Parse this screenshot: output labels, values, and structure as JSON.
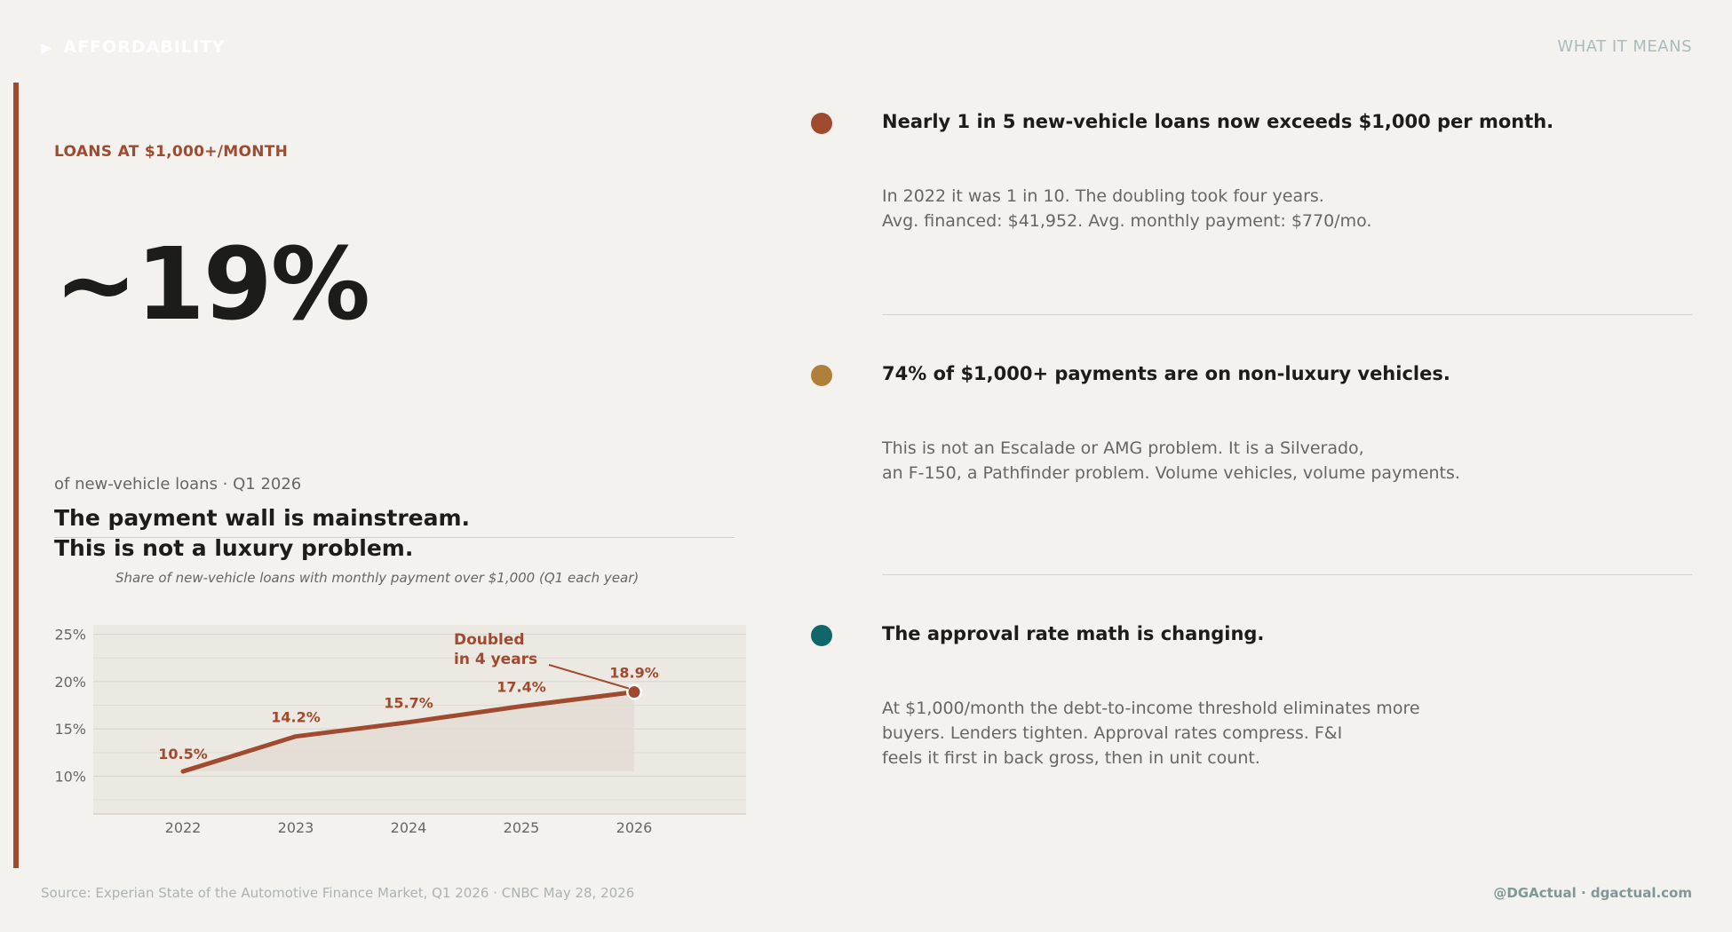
{
  "header": {
    "brand": "AFFORDABILITY",
    "section": "WHAT IT MEANS"
  },
  "left": {
    "kicker": "LOANS AT $1,000+/MONTH",
    "stat": "~19%",
    "stat_sub": "of new-vehicle loans  ·  Q1 2026",
    "headline_line1": "The payment wall is mainstream.",
    "headline_line2": "This is not a luxury problem.",
    "chart_caption": "Share of new-vehicle loans with monthly payment over $1,000 (Q1 each year)"
  },
  "chart_data": {
    "type": "line",
    "title": "Share of new-vehicle loans with monthly payment over $1,000 (Q1 each year)",
    "x": [
      "2022",
      "2023",
      "2024",
      "2025",
      "2026"
    ],
    "series": [
      {
        "values": [
          10.5,
          14.2,
          15.7,
          17.4,
          18.9
        ]
      }
    ],
    "data_labels": [
      "10.5%",
      "14.2%",
      "15.7%",
      "17.4%",
      "18.9%"
    ],
    "y_ticks": [
      10,
      15,
      20,
      25
    ],
    "y_tick_labels": [
      "10%",
      "15%",
      "20%",
      "25%"
    ],
    "ylim": [
      6,
      26
    ],
    "annotation": {
      "line1": "Doubled",
      "line2": "in 4 years",
      "target_year": "2026"
    },
    "grid": true,
    "colors": {
      "line": "#a04a30",
      "plot_bg": "#ece9e3",
      "fill": "#e3d9d1",
      "grid": "#d6d2cb",
      "axis_text": "#666663"
    }
  },
  "items": [
    {
      "title": "Nearly 1 in 5 new-vehicle loans now exceeds $1,000 per month.",
      "body_line1": "In 2022 it was 1 in 10. The doubling took four years.",
      "body_line2": "Avg. financed: $41,952. Avg. monthly payment: $770/mo.",
      "body_line3": "",
      "color": "#a04a30"
    },
    {
      "title": "74% of $1,000+ payments are on non-luxury vehicles.",
      "body_line1": "This is not an Escalade or AMG problem. It is a Silverado,",
      "body_line2": "an F-150, a Pathfinder problem. Volume vehicles, volume payments.",
      "body_line3": "",
      "color": "#b0803a"
    },
    {
      "title": "The approval rate math is changing.",
      "body_line1": "At $1,000/month the debt-to-income threshold eliminates more",
      "body_line2": "buyers. Lenders tighten. Approval rates compress. F&I",
      "body_line3": "feels it first in back gross, then in unit count.",
      "color": "#10676a"
    }
  ],
  "footer": {
    "source": "Source: Experian State of the Automotive Finance Market, Q1 2026  ·  CNBC May 28, 2026",
    "handle": "@DGActual  ·  dgactual.com"
  }
}
